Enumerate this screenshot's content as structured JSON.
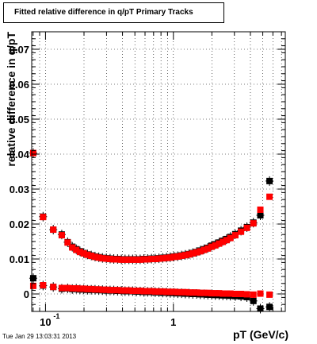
{
  "timestamp": "Tue Jan 29 13:03:31 2013",
  "colors": {
    "series_a": "#000000",
    "series_b": "#ff0000"
  },
  "chart_data": {
    "type": "scatter",
    "title": "Fitted relative difference in q/pT  Primary Tracks",
    "xlabel": "pT (GeV/c)",
    "ylabel": "relative difference in q/pT",
    "x_scale": "log",
    "xlim": [
      0.078,
      7.5
    ],
    "ylim": [
      -0.005,
      0.075
    ],
    "x_ticks": [
      {
        "value": 0.1,
        "label": "10",
        "sup": "-1"
      },
      {
        "value": 1,
        "label": "1",
        "sup": ""
      }
    ],
    "y_ticks": [
      {
        "value": 0,
        "label": "0"
      },
      {
        "value": 0.01,
        "label": "0.01"
      },
      {
        "value": 0.02,
        "label": "0.02"
      },
      {
        "value": 0.03,
        "label": "0.03"
      },
      {
        "value": 0.04,
        "label": "0.04"
      },
      {
        "value": 0.05,
        "label": "0.05"
      },
      {
        "value": 0.06,
        "label": "0.06"
      },
      {
        "value": 0.07,
        "label": "0.07"
      }
    ],
    "grid": true,
    "series": [
      {
        "color": "#000000",
        "points": [
          [
            0.0802,
            0.0403
          ],
          [
            0.0957,
            0.0221
          ],
          [
            0.115,
            0.0184
          ],
          [
            0.134,
            0.017
          ],
          [
            0.149,
            0.0148
          ],
          [
            0.162,
            0.0135
          ],
          [
            0.174,
            0.0128
          ],
          [
            0.186,
            0.0122
          ],
          [
            0.199,
            0.0117
          ],
          [
            0.213,
            0.0113
          ],
          [
            0.228,
            0.011
          ],
          [
            0.244,
            0.0107
          ],
          [
            0.261,
            0.0105
          ],
          [
            0.279,
            0.0103
          ],
          [
            0.299,
            0.0102
          ],
          [
            0.32,
            0.0101
          ],
          [
            0.342,
            0.01
          ],
          [
            0.366,
            0.01
          ],
          [
            0.392,
            0.0099
          ],
          [
            0.419,
            0.0099
          ],
          [
            0.449,
            0.0099
          ],
          [
            0.48,
            0.0099
          ],
          [
            0.514,
            0.0099
          ],
          [
            0.55,
            0.0099
          ],
          [
            0.588,
            0.01
          ],
          [
            0.629,
            0.01
          ],
          [
            0.674,
            0.0101
          ],
          [
            0.721,
            0.0101
          ],
          [
            0.771,
            0.0102
          ],
          [
            0.825,
            0.0103
          ],
          [
            0.883,
            0.0104
          ],
          [
            0.945,
            0.0105
          ],
          [
            1.011,
            0.0107
          ],
          [
            1.082,
            0.0108
          ],
          [
            1.158,
            0.011
          ],
          [
            1.239,
            0.0112
          ],
          [
            1.325,
            0.0114
          ],
          [
            1.418,
            0.0117
          ],
          [
            1.518,
            0.012
          ],
          [
            1.624,
            0.0124
          ],
          [
            1.737,
            0.0128
          ],
          [
            1.859,
            0.0132
          ],
          [
            1.989,
            0.0138
          ],
          [
            2.128,
            0.0142
          ],
          [
            2.277,
            0.0147
          ],
          [
            2.437,
            0.0152
          ],
          [
            2.607,
            0.0157
          ],
          [
            2.79,
            0.0163
          ],
          [
            3.047,
            0.0171
          ],
          [
            3.378,
            0.0181
          ],
          [
            3.757,
            0.0191
          ],
          [
            4.221,
            0.0204
          ],
          [
            4.786,
            0.0225
          ],
          [
            5.645,
            0.0323
          ]
        ]
      },
      {
        "color": "#ff0000",
        "points": [
          [
            0.0802,
            0.0403
          ],
          [
            0.0957,
            0.022
          ],
          [
            0.115,
            0.0184
          ],
          [
            0.134,
            0.0168
          ],
          [
            0.149,
            0.0147
          ],
          [
            0.162,
            0.0133
          ],
          [
            0.174,
            0.0126
          ],
          [
            0.186,
            0.012
          ],
          [
            0.199,
            0.0116
          ],
          [
            0.213,
            0.0112
          ],
          [
            0.228,
            0.0109
          ],
          [
            0.244,
            0.0106
          ],
          [
            0.261,
            0.0104
          ],
          [
            0.279,
            0.0102
          ],
          [
            0.299,
            0.0101
          ],
          [
            0.32,
            0.01
          ],
          [
            0.342,
            0.0099
          ],
          [
            0.366,
            0.0099
          ],
          [
            0.392,
            0.0098
          ],
          [
            0.419,
            0.0098
          ],
          [
            0.449,
            0.0098
          ],
          [
            0.48,
            0.0098
          ],
          [
            0.514,
            0.0098
          ],
          [
            0.55,
            0.0098
          ],
          [
            0.588,
            0.0099
          ],
          [
            0.629,
            0.0099
          ],
          [
            0.674,
            0.01
          ],
          [
            0.721,
            0.01
          ],
          [
            0.771,
            0.0101
          ],
          [
            0.825,
            0.0102
          ],
          [
            0.883,
            0.0103
          ],
          [
            0.945,
            0.0104
          ],
          [
            1.011,
            0.0106
          ],
          [
            1.082,
            0.0107
          ],
          [
            1.158,
            0.0109
          ],
          [
            1.239,
            0.0111
          ],
          [
            1.325,
            0.0113
          ],
          [
            1.418,
            0.0116
          ],
          [
            1.518,
            0.0119
          ],
          [
            1.624,
            0.0122
          ],
          [
            1.737,
            0.0126
          ],
          [
            1.859,
            0.013
          ],
          [
            1.989,
            0.0135
          ],
          [
            2.128,
            0.0139
          ],
          [
            2.277,
            0.0144
          ],
          [
            2.437,
            0.0149
          ],
          [
            2.607,
            0.0154
          ],
          [
            2.79,
            0.016
          ],
          [
            3.047,
            0.0168
          ],
          [
            3.378,
            0.0178
          ],
          [
            3.757,
            0.0189
          ],
          [
            4.221,
            0.0202
          ],
          [
            4.786,
            0.0241
          ],
          [
            5.645,
            0.0278
          ]
        ]
      },
      {
        "color": "#000000",
        "points": [
          [
            0.0802,
            0.0045
          ],
          [
            0.0957,
            0.0024
          ],
          [
            0.115,
            0.002
          ],
          [
            0.134,
            0.0015
          ],
          [
            0.149,
            0.0016
          ],
          [
            0.162,
            0.0014
          ],
          [
            0.174,
            0.0015
          ],
          [
            0.186,
            0.0013
          ],
          [
            0.199,
            0.0013
          ],
          [
            0.213,
            0.0012
          ],
          [
            0.228,
            0.0012
          ],
          [
            0.244,
            0.0012
          ],
          [
            0.261,
            0.0011
          ],
          [
            0.279,
            0.0011
          ],
          [
            0.299,
            0.001
          ],
          [
            0.32,
            0.001
          ],
          [
            0.342,
            0.001
          ],
          [
            0.366,
            0.0009
          ],
          [
            0.392,
            0.0009
          ],
          [
            0.419,
            0.0008
          ],
          [
            0.449,
            0.0008
          ],
          [
            0.48,
            0.0008
          ],
          [
            0.514,
            0.0007
          ],
          [
            0.55,
            0.0007
          ],
          [
            0.588,
            0.0006
          ],
          [
            0.629,
            0.0006
          ],
          [
            0.674,
            0.0006
          ],
          [
            0.721,
            0.0005
          ],
          [
            0.771,
            0.0005
          ],
          [
            0.825,
            0.0004
          ],
          [
            0.883,
            0.0004
          ],
          [
            0.945,
            0.0003
          ],
          [
            1.011,
            0.0003
          ],
          [
            1.082,
            0.0002
          ],
          [
            1.158,
            0.0002
          ],
          [
            1.239,
            0.0001
          ],
          [
            1.325,
            0.0001
          ],
          [
            1.418,
            0.0
          ],
          [
            1.518,
            0.0
          ],
          [
            1.624,
            -0.0001
          ],
          [
            1.737,
            -0.0001
          ],
          [
            1.859,
            -0.0002
          ],
          [
            1.989,
            -0.0002
          ],
          [
            2.128,
            -0.0003
          ],
          [
            2.277,
            -0.0003
          ],
          [
            2.437,
            -0.0004
          ],
          [
            2.607,
            -0.0004
          ],
          [
            2.79,
            -0.0005
          ],
          [
            3.047,
            -0.0006
          ],
          [
            3.378,
            -0.0007
          ],
          [
            3.757,
            -0.0009
          ],
          [
            4.221,
            -0.002
          ],
          [
            4.786,
            -0.0042
          ],
          [
            5.645,
            -0.0037
          ]
        ]
      },
      {
        "color": "#ff0000",
        "points": [
          [
            0.0802,
            0.0023
          ],
          [
            0.0957,
            0.0025
          ],
          [
            0.115,
            0.002
          ],
          [
            0.134,
            0.0017
          ],
          [
            0.149,
            0.0017
          ],
          [
            0.162,
            0.0016
          ],
          [
            0.174,
            0.0016
          ],
          [
            0.186,
            0.0015
          ],
          [
            0.199,
            0.0015
          ],
          [
            0.213,
            0.0014
          ],
          [
            0.228,
            0.0014
          ],
          [
            0.244,
            0.0013
          ],
          [
            0.261,
            0.0013
          ],
          [
            0.279,
            0.0012
          ],
          [
            0.299,
            0.0012
          ],
          [
            0.32,
            0.0011
          ],
          [
            0.342,
            0.0011
          ],
          [
            0.366,
            0.0011
          ],
          [
            0.392,
            0.001
          ],
          [
            0.419,
            0.001
          ],
          [
            0.449,
            0.001
          ],
          [
            0.48,
            0.0009
          ],
          [
            0.514,
            0.0009
          ],
          [
            0.55,
            0.0009
          ],
          [
            0.588,
            0.0008
          ],
          [
            0.629,
            0.0008
          ],
          [
            0.674,
            0.0008
          ],
          [
            0.721,
            0.0007
          ],
          [
            0.771,
            0.0007
          ],
          [
            0.825,
            0.0007
          ],
          [
            0.883,
            0.0006
          ],
          [
            0.945,
            0.0006
          ],
          [
            1.011,
            0.0006
          ],
          [
            1.082,
            0.0005
          ],
          [
            1.158,
            0.0005
          ],
          [
            1.239,
            0.0005
          ],
          [
            1.325,
            0.0004
          ],
          [
            1.418,
            0.0004
          ],
          [
            1.518,
            0.0004
          ],
          [
            1.624,
            0.0003
          ],
          [
            1.737,
            0.0003
          ],
          [
            1.859,
            0.0003
          ],
          [
            1.989,
            0.0002
          ],
          [
            2.128,
            0.0002
          ],
          [
            2.277,
            0.0002
          ],
          [
            2.437,
            0.0001
          ],
          [
            2.607,
            0.0001
          ],
          [
            2.79,
            0.0001
          ],
          [
            3.047,
            0.0
          ],
          [
            3.378,
            0.0
          ],
          [
            3.757,
            -0.0001
          ],
          [
            4.221,
            -0.0002
          ],
          [
            4.786,
            0.0001
          ],
          [
            5.645,
            -0.0002
          ]
        ]
      }
    ]
  }
}
